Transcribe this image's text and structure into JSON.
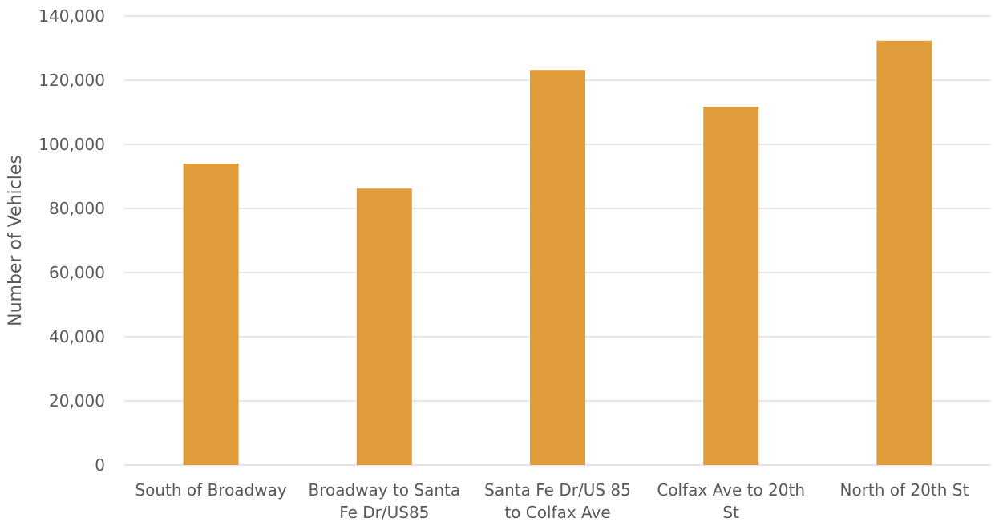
{
  "chart_data": {
    "type": "bar",
    "title": "",
    "xlabel": "",
    "ylabel": "Number of Vehicles",
    "ylim": [
      0,
      140000
    ],
    "y_ticks": [
      0,
      20000,
      40000,
      60000,
      80000,
      100000,
      120000,
      140000
    ],
    "y_tick_labels": [
      "0",
      "20,000",
      "40,000",
      "60,000",
      "80,000",
      "100,000",
      "120,000",
      "140,000"
    ],
    "grid": true,
    "legend": "none",
    "bar_color": "#E09C3A",
    "categories": [
      [
        "South of Broadway"
      ],
      [
        "Broadway to Santa",
        "Fe Dr/US85"
      ],
      [
        "Santa Fe Dr/US 85",
        "to Colfax Ave"
      ],
      [
        "Colfax Ave to 20th",
        "St"
      ],
      [
        "North of 20th St"
      ]
    ],
    "values": [
      94000,
      86200,
      123200,
      111700,
      132300
    ]
  }
}
